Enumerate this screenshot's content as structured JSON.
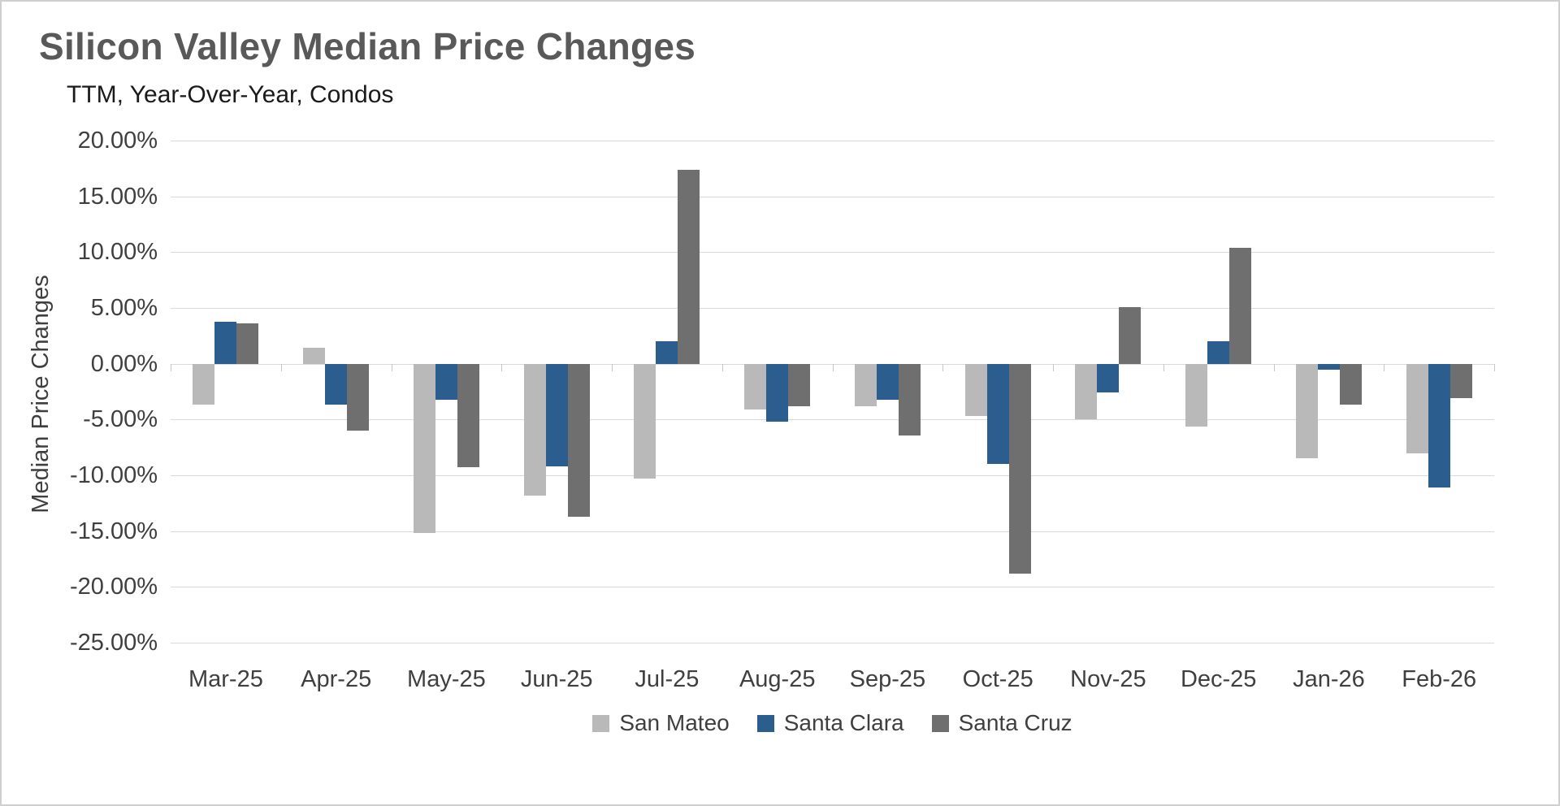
{
  "chart_data": {
    "type": "bar",
    "title": "Silicon Valley Median Price Changes",
    "subtitle": "TTM, Year-Over-Year, Condos",
    "xlabel": "",
    "ylabel": "Median Price Changes",
    "ylim": [
      -25,
      20
    ],
    "ytick_values": [
      20,
      15,
      10,
      5,
      0,
      -5,
      -10,
      -15,
      -20,
      -25
    ],
    "ytick_labels": [
      "20.00%",
      "15.00%",
      "10.00%",
      "5.00%",
      "0.00%",
      "-5.00%",
      "-10.00%",
      "-15.00%",
      "-20.00%",
      "-25.00%"
    ],
    "grid": true,
    "legend_position": "bottom",
    "categories": [
      "Mar-25",
      "Apr-25",
      "May-25",
      "Jun-25",
      "Jul-25",
      "Aug-25",
      "Sep-25",
      "Oct-25",
      "Nov-25",
      "Dec-25",
      "Jan-26",
      "Feb-26"
    ],
    "series": [
      {
        "name": "San Mateo",
        "color": "#b9b9b9",
        "values": [
          -3.7,
          1.4,
          -15.2,
          -11.8,
          -10.3,
          -4.1,
          -3.8,
          -4.7,
          -5.0,
          -5.6,
          -8.5,
          -8.0
        ]
      },
      {
        "name": "Santa Clara",
        "color": "#2b5d8e",
        "values": [
          3.8,
          -3.7,
          -3.2,
          -9.2,
          2.0,
          -5.2,
          -3.2,
          -9.0,
          -2.6,
          2.0,
          -0.5,
          -11.1
        ]
      },
      {
        "name": "Santa Cruz",
        "color": "#6f6f6f",
        "values": [
          3.6,
          -6.0,
          -9.3,
          -13.7,
          17.4,
          -3.8,
          -6.4,
          -18.8,
          5.1,
          10.4,
          -3.7,
          -3.1
        ]
      }
    ]
  }
}
